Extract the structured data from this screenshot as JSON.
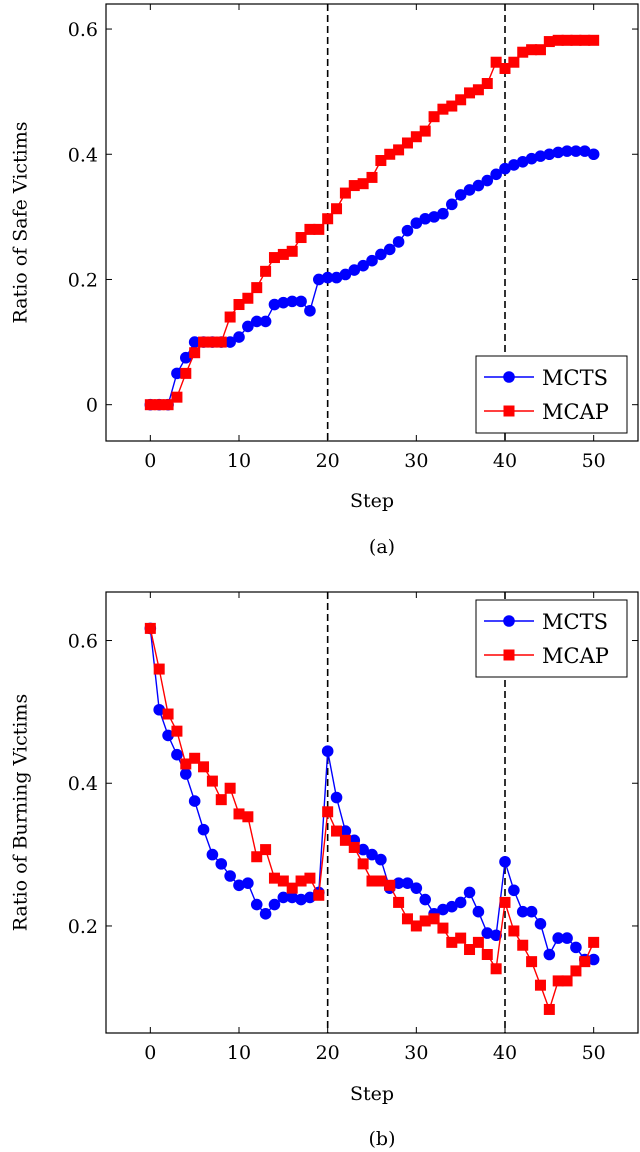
{
  "chart_data": [
    {
      "type": "line",
      "caption": "(a)",
      "xlabel": "Step",
      "ylabel": "Ratio of Safe Victims",
      "xlim": [
        -5,
        55
      ],
      "ylim": [
        -0.058,
        0.64
      ],
      "xticks": [
        0,
        10,
        20,
        30,
        40,
        50
      ],
      "xtick_labels": [
        "0",
        "10",
        "20",
        "30",
        "40",
        "50"
      ],
      "yticks": [
        0,
        0.2,
        0.4,
        0.6
      ],
      "ytick_labels": [
        "0",
        "0.2",
        "0.4",
        "0.6"
      ],
      "vlines": [
        20,
        40
      ],
      "legend_position": "bottom-right",
      "series": [
        {
          "name": "MCTS",
          "color": "#0000ff",
          "marker": "circle",
          "x": [
            0,
            1,
            2,
            3,
            4,
            5,
            6,
            7,
            8,
            9,
            10,
            11,
            12,
            13,
            14,
            15,
            16,
            17,
            18,
            19,
            20,
            21,
            22,
            23,
            24,
            25,
            26,
            27,
            28,
            29,
            30,
            31,
            32,
            33,
            34,
            35,
            36,
            37,
            38,
            39,
            40,
            41,
            42,
            43,
            44,
            45,
            46,
            47,
            48,
            49,
            50
          ],
          "values": [
            0,
            0,
            0,
            0.05,
            0.075,
            0.1,
            0.1,
            0.1,
            0.1,
            0.1,
            0.108,
            0.125,
            0.133,
            0.133,
            0.16,
            0.163,
            0.165,
            0.165,
            0.15,
            0.2,
            0.203,
            0.203,
            0.208,
            0.215,
            0.222,
            0.23,
            0.24,
            0.248,
            0.26,
            0.278,
            0.29,
            0.297,
            0.3,
            0.305,
            0.32,
            0.335,
            0.343,
            0.35,
            0.358,
            0.368,
            0.377,
            0.383,
            0.388,
            0.393,
            0.397,
            0.4,
            0.403,
            0.405,
            0.405,
            0.405,
            0.4
          ]
        },
        {
          "name": "MCAP",
          "color": "#ff0000",
          "marker": "square",
          "x": [
            0,
            1,
            2,
            3,
            4,
            5,
            6,
            7,
            8,
            9,
            10,
            11,
            12,
            13,
            14,
            15,
            16,
            17,
            18,
            19,
            20,
            21,
            22,
            23,
            24,
            25,
            26,
            27,
            28,
            29,
            30,
            31,
            32,
            33,
            34,
            35,
            36,
            37,
            38,
            39,
            40,
            41,
            42,
            43,
            44,
            45,
            46,
            47,
            48,
            49,
            50
          ],
          "values": [
            0,
            0,
            0,
            0.012,
            0.05,
            0.083,
            0.1,
            0.1,
            0.1,
            0.14,
            0.16,
            0.17,
            0.187,
            0.213,
            0.235,
            0.24,
            0.245,
            0.267,
            0.28,
            0.28,
            0.297,
            0.313,
            0.338,
            0.35,
            0.353,
            0.363,
            0.39,
            0.4,
            0.407,
            0.418,
            0.428,
            0.437,
            0.46,
            0.472,
            0.477,
            0.487,
            0.498,
            0.503,
            0.513,
            0.547,
            0.537,
            0.547,
            0.563,
            0.567,
            0.567,
            0.58,
            0.582,
            0.582,
            0.582,
            0.582,
            0.582
          ]
        }
      ]
    },
    {
      "type": "line",
      "caption": "(b)",
      "xlabel": "Step",
      "ylabel": "Ratio of Burning Victims",
      "xlim": [
        -5,
        55
      ],
      "ylim": [
        0.05,
        0.668
      ],
      "xticks": [
        0,
        10,
        20,
        30,
        40,
        50
      ],
      "xtick_labels": [
        "0",
        "10",
        "20",
        "30",
        "40",
        "50"
      ],
      "yticks": [
        0.2,
        0.4,
        0.6
      ],
      "ytick_labels": [
        "0.2",
        "0.4",
        "0.6"
      ],
      "vlines": [
        20,
        40
      ],
      "legend_position": "top-right",
      "series": [
        {
          "name": "MCTS",
          "color": "#0000ff",
          "marker": "circle",
          "x": [
            0,
            1,
            2,
            3,
            4,
            5,
            6,
            7,
            8,
            9,
            10,
            11,
            12,
            13,
            14,
            15,
            16,
            17,
            18,
            19,
            20,
            21,
            22,
            23,
            24,
            25,
            26,
            27,
            28,
            29,
            30,
            31,
            32,
            33,
            34,
            35,
            36,
            37,
            38,
            39,
            40,
            41,
            42,
            43,
            44,
            45,
            46,
            47,
            48,
            49,
            50
          ],
          "values": [
            0.617,
            0.503,
            0.467,
            0.44,
            0.413,
            0.375,
            0.335,
            0.3,
            0.287,
            0.27,
            0.257,
            0.26,
            0.23,
            0.217,
            0.23,
            0.24,
            0.24,
            0.237,
            0.24,
            0.247,
            0.445,
            0.38,
            0.333,
            0.32,
            0.307,
            0.3,
            0.293,
            0.253,
            0.26,
            0.26,
            0.253,
            0.237,
            0.217,
            0.223,
            0.227,
            0.233,
            0.247,
            0.22,
            0.19,
            0.187,
            0.29,
            0.25,
            0.22,
            0.22,
            0.203,
            0.16,
            0.183,
            0.183,
            0.17,
            0.153,
            0.153
          ]
        },
        {
          "name": "MCAP",
          "color": "#ff0000",
          "marker": "square",
          "x": [
            0,
            1,
            2,
            3,
            4,
            5,
            6,
            7,
            8,
            9,
            10,
            11,
            12,
            13,
            14,
            15,
            16,
            17,
            18,
            19,
            20,
            21,
            22,
            23,
            24,
            25,
            26,
            27,
            28,
            29,
            30,
            31,
            32,
            33,
            34,
            35,
            36,
            37,
            38,
            39,
            40,
            41,
            42,
            43,
            44,
            45,
            46,
            47,
            48,
            49,
            50
          ],
          "values": [
            0.617,
            0.56,
            0.497,
            0.473,
            0.427,
            0.435,
            0.423,
            0.403,
            0.377,
            0.393,
            0.357,
            0.353,
            0.297,
            0.307,
            0.267,
            0.263,
            0.253,
            0.263,
            0.267,
            0.243,
            0.36,
            0.333,
            0.32,
            0.31,
            0.287,
            0.263,
            0.263,
            0.257,
            0.233,
            0.21,
            0.2,
            0.207,
            0.21,
            0.197,
            0.177,
            0.183,
            0.167,
            0.177,
            0.16,
            0.14,
            0.233,
            0.193,
            0.173,
            0.15,
            0.117,
            0.083,
            0.123,
            0.123,
            0.137,
            0.15,
            0.177
          ]
        }
      ]
    }
  ]
}
